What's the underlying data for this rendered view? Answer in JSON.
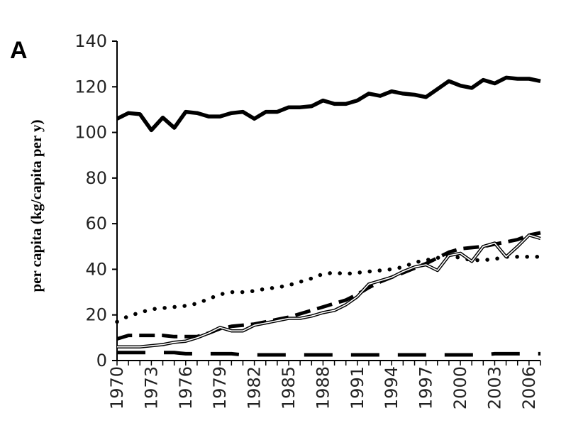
{
  "chart_data": {
    "type": "line",
    "panel_label": "A",
    "title": "",
    "xlabel": "",
    "ylabel": "per capita (kg/capita per y)",
    "xlim": [
      1970,
      2007
    ],
    "ylim": [
      0,
      140
    ],
    "y_ticks": [
      0,
      20,
      40,
      60,
      80,
      100,
      120,
      140
    ],
    "x_ticks": [
      1970,
      1973,
      1976,
      1979,
      1982,
      1985,
      1988,
      1991,
      1994,
      1997,
      2000,
      2003,
      2006
    ],
    "grid": false,
    "legend": "none",
    "x": [
      1970,
      1971,
      1972,
      1973,
      1974,
      1975,
      1976,
      1977,
      1978,
      1979,
      1980,
      1981,
      1982,
      1983,
      1984,
      1985,
      1986,
      1987,
      1988,
      1989,
      1990,
      1991,
      1992,
      1993,
      1994,
      1995,
      1996,
      1997,
      1998,
      1999,
      2000,
      2001,
      2002,
      2003,
      2004,
      2005,
      2006,
      2007
    ],
    "series": [
      {
        "style": "thick-solid",
        "values": [
          106,
          108.5,
          108,
          101,
          106.5,
          102,
          109,
          108.5,
          107,
          107,
          108.5,
          109,
          106,
          109,
          109,
          111,
          111,
          111.5,
          114,
          112.5,
          112.5,
          114,
          117,
          116,
          118,
          117,
          116.5,
          115.5,
          119,
          122.5,
          120.5,
          119.5,
          123,
          121.5,
          124,
          123.5,
          123.5,
          122.5
        ]
      },
      {
        "style": "dotted",
        "values": [
          17,
          19.5,
          21,
          22.5,
          23,
          23.5,
          24,
          25,
          27,
          29,
          30,
          30,
          30.5,
          31.5,
          32,
          33,
          34.5,
          36,
          38,
          38.5,
          38,
          38.5,
          39,
          39.5,
          40,
          41,
          43,
          44,
          45,
          46,
          45,
          44,
          44,
          44.5,
          45.5,
          45.5,
          45.5,
          45.5
        ]
      },
      {
        "style": "dashed",
        "values": [
          9.5,
          11,
          11,
          11,
          11,
          10.5,
          10.5,
          10.5,
          12,
          14,
          15,
          15.5,
          16,
          17,
          18,
          19,
          20.5,
          22,
          23.5,
          25,
          26.5,
          29,
          32,
          34.5,
          36.5,
          38.5,
          40.5,
          42.5,
          45,
          47.5,
          49,
          49.5,
          50,
          51,
          52,
          53,
          55,
          56
        ]
      },
      {
        "style": "double-solid",
        "values": [
          6,
          6,
          6,
          6.5,
          7,
          8,
          8.5,
          10,
          12,
          14.5,
          13,
          13,
          15.5,
          16.5,
          17.5,
          18.5,
          18.5,
          19.5,
          21,
          22,
          24.5,
          28,
          33.5,
          35,
          36.5,
          39,
          41,
          42,
          39.5,
          46,
          47,
          43.5,
          50,
          51.5,
          45.5,
          50,
          55,
          53.5
        ]
      },
      {
        "style": "long-dash",
        "values": [
          3.5,
          3.5,
          3.5,
          3.5,
          3.5,
          3.5,
          3,
          3,
          3,
          3,
          3,
          2.5,
          2.5,
          2.5,
          2.5,
          2.5,
          2.5,
          2.5,
          2.5,
          2.5,
          2.5,
          2.5,
          2.5,
          2.5,
          2.5,
          2.5,
          2.5,
          2.5,
          2.5,
          2.5,
          2.5,
          2.5,
          2.5,
          3,
          3,
          3,
          3,
          3
        ]
      }
    ]
  }
}
